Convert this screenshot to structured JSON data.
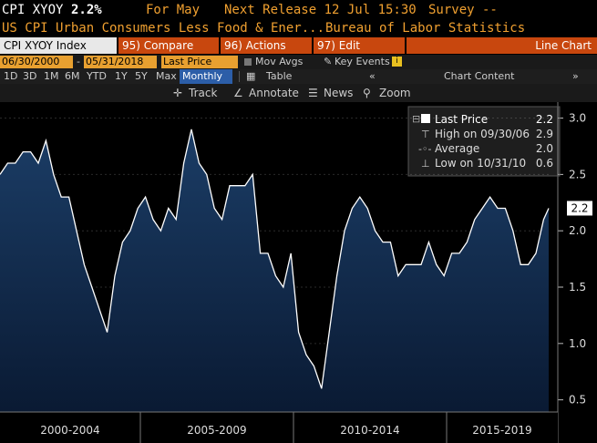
{
  "header": {
    "ticker": "CPI XYOY",
    "last_value": "2.2%",
    "for_period": "For May",
    "next_release": "Next Release 12 Jul 15:30",
    "survey": "Survey --"
  },
  "subheader": {
    "name": "US CPI Urban Consumers Less Food & Ener...",
    "source": "Bureau of Labor Statistics"
  },
  "toolbar": {
    "index_label": "CPI XYOY Index",
    "compare_label": "95) Compare",
    "actions_label": "96) Actions",
    "edit_label": "97) Edit",
    "chart_type_label": "Line Chart"
  },
  "range": {
    "start_date": "06/30/2000",
    "end_date": "05/31/2018",
    "dash": "-",
    "series_select": "Last Price",
    "mov_avgs": "Mov Avgs",
    "key_events": "Key Events",
    "info": "i"
  },
  "periods": {
    "items": [
      "1D",
      "3D",
      "1M",
      "6M",
      "YTD",
      "1Y",
      "5Y",
      "Max"
    ],
    "frequency": "Monthly ▼",
    "table": "Table",
    "chart_content": "Chart Content",
    "chev_left": "«",
    "chev_right": "»"
  },
  "tools": {
    "track": "Track",
    "annotate": "Annotate",
    "news": "News",
    "zoom": "Zoom"
  },
  "legend": {
    "last_price_label": "Last Price",
    "last_price_value": "2.2",
    "high_label": "High on 09/30/06",
    "high_value": "2.9",
    "average_label": "Average",
    "average_value": "2.0",
    "low_label": "Low on 10/31/10",
    "low_value": "0.6"
  },
  "colors": {
    "line": "#ffffff",
    "fill_top": "#1b3d66",
    "fill_bottom": "#0a1a33",
    "accent": "#f0a030",
    "tab": "#c8470e"
  },
  "chart_data": {
    "type": "area",
    "title": "",
    "xlabel": "",
    "ylabel": "",
    "ylim": [
      0.4,
      3.1
    ],
    "yticks": [
      "3.0",
      "2.5",
      "2.0",
      "1.5",
      "1.0",
      "0.5"
    ],
    "xtick_labels": [
      "2000-2004",
      "2005-2009",
      "2010-2014",
      "2015-2019"
    ],
    "last_value_tag": "2.2",
    "series": [
      {
        "name": "Last Price",
        "x": [
          "2000-06",
          "2000-09",
          "2000-12",
          "2001-03",
          "2001-06",
          "2001-09",
          "2001-12",
          "2002-03",
          "2002-06",
          "2002-09",
          "2002-12",
          "2003-03",
          "2003-06",
          "2003-09",
          "2003-12",
          "2004-03",
          "2004-06",
          "2004-09",
          "2004-12",
          "2005-03",
          "2005-06",
          "2005-09",
          "2005-12",
          "2006-03",
          "2006-06",
          "2006-09",
          "2006-12",
          "2007-03",
          "2007-06",
          "2007-09",
          "2007-12",
          "2008-03",
          "2008-06",
          "2008-09",
          "2008-12",
          "2009-03",
          "2009-06",
          "2009-09",
          "2009-12",
          "2010-03",
          "2010-06",
          "2010-09",
          "2010-12",
          "2011-03",
          "2011-06",
          "2011-09",
          "2011-12",
          "2012-03",
          "2012-06",
          "2012-09",
          "2012-12",
          "2013-03",
          "2013-06",
          "2013-09",
          "2013-12",
          "2014-03",
          "2014-06",
          "2014-09",
          "2014-12",
          "2015-03",
          "2015-06",
          "2015-09",
          "2015-12",
          "2016-03",
          "2016-06",
          "2016-09",
          "2016-12",
          "2017-03",
          "2017-06",
          "2017-09",
          "2017-12",
          "2018-03",
          "2018-05"
        ],
        "values": [
          2.5,
          2.6,
          2.6,
          2.7,
          2.7,
          2.6,
          2.8,
          2.5,
          2.3,
          2.3,
          2.0,
          1.7,
          1.5,
          1.3,
          1.1,
          1.6,
          1.9,
          2.0,
          2.2,
          2.3,
          2.1,
          2.0,
          2.2,
          2.1,
          2.6,
          2.9,
          2.6,
          2.5,
          2.2,
          2.1,
          2.4,
          2.4,
          2.4,
          2.5,
          1.8,
          1.8,
          1.6,
          1.5,
          1.8,
          1.1,
          0.9,
          0.8,
          0.6,
          1.1,
          1.6,
          2.0,
          2.2,
          2.3,
          2.2,
          2.0,
          1.9,
          1.9,
          1.6,
          1.7,
          1.7,
          1.7,
          1.9,
          1.7,
          1.6,
          1.8,
          1.8,
          1.9,
          2.1,
          2.2,
          2.3,
          2.2,
          2.2,
          2.0,
          1.7,
          1.7,
          1.8,
          2.1,
          2.2
        ]
      }
    ],
    "legend": [
      {
        "label": "Last Price",
        "value": 2.2
      },
      {
        "label": "High on 09/30/06",
        "value": 2.9
      },
      {
        "label": "Average",
        "value": 2.0
      },
      {
        "label": "Low on 10/31/10",
        "value": 0.6
      }
    ]
  }
}
